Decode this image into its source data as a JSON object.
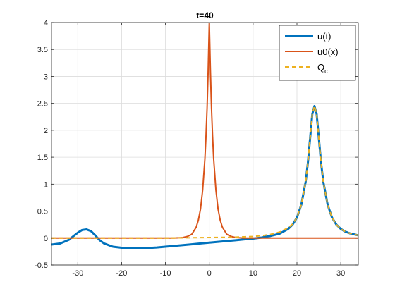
{
  "chart_data": {
    "type": "line",
    "title": "t=40",
    "xlabel": "",
    "ylabel": "",
    "xlim": [
      -36,
      34
    ],
    "ylim": [
      -0.5,
      4
    ],
    "grid": true,
    "legend_position": "top-right",
    "x_ticks": [
      -30,
      -20,
      -10,
      0,
      10,
      20,
      30
    ],
    "x_tick_labels": [
      "-30",
      "-20",
      "-10",
      "0",
      "10",
      "20",
      "30"
    ],
    "y_ticks": [
      -0.5,
      0,
      0.5,
      1,
      1.5,
      2,
      2.5,
      3,
      3.5,
      4
    ],
    "y_tick_labels": [
      "-0.5",
      "0",
      "0.5",
      "1",
      "1.5",
      "2",
      "2.5",
      "3",
      "3.5",
      "4"
    ],
    "legend": {
      "entries": [
        {
          "label": "u(t)",
          "series_index": 0
        },
        {
          "label": "u0(x)",
          "series_index": 1
        },
        {
          "label": "Q",
          "subscript": "c",
          "series_index": 2
        }
      ]
    },
    "series": [
      {
        "name": "u(t)",
        "color": "#0072BD",
        "style": "solid-with-markers",
        "x": [
          -36,
          -34,
          -32,
          -30,
          -29,
          -28,
          -27,
          -26,
          -25,
          -24,
          -22,
          -20,
          -18,
          -16,
          -14,
          -12,
          -10,
          -8,
          -6,
          -4,
          -2,
          0,
          2,
          4,
          6,
          8,
          10,
          12,
          14,
          16,
          18,
          19,
          20,
          21,
          22,
          22.5,
          23,
          23.5,
          24,
          24.5,
          25,
          25.5,
          26,
          27,
          28,
          29,
          30,
          31,
          32,
          33,
          34
        ],
        "y": [
          -0.12,
          -0.1,
          -0.03,
          0.1,
          0.15,
          0.16,
          0.13,
          0.05,
          -0.04,
          -0.1,
          -0.16,
          -0.18,
          -0.19,
          -0.19,
          -0.185,
          -0.175,
          -0.16,
          -0.145,
          -0.13,
          -0.115,
          -0.1,
          -0.085,
          -0.07,
          -0.055,
          -0.04,
          -0.025,
          -0.01,
          0.01,
          0.04,
          0.08,
          0.17,
          0.25,
          0.38,
          0.62,
          1.05,
          1.4,
          1.85,
          2.3,
          2.45,
          2.3,
          1.85,
          1.4,
          1.05,
          0.62,
          0.38,
          0.25,
          0.17,
          0.12,
          0.09,
          0.07,
          0.05
        ]
      },
      {
        "name": "u0(x)",
        "color": "#D95319",
        "style": "solid",
        "x": [
          -36,
          -20,
          -10,
          -8,
          -6,
          -5,
          -4,
          -3,
          -2.5,
          -2,
          -1.5,
          -1,
          -0.75,
          -0.5,
          -0.25,
          0,
          0.25,
          0.5,
          0.75,
          1,
          1.5,
          2,
          2.5,
          3,
          4,
          5,
          6,
          8,
          10,
          20,
          34
        ],
        "y": [
          0,
          0,
          0,
          0,
          0.01,
          0.03,
          0.07,
          0.2,
          0.33,
          0.54,
          0.9,
          1.47,
          1.89,
          2.42,
          3.12,
          4.0,
          3.12,
          2.42,
          1.89,
          1.47,
          0.9,
          0.54,
          0.33,
          0.2,
          0.07,
          0.03,
          0.01,
          0,
          0,
          0,
          0
        ]
      },
      {
        "name": "Q",
        "color": "#EDB120",
        "style": "dashed",
        "x": [
          -36,
          -20,
          -10,
          0,
          5,
          10,
          12,
          14,
          16,
          18,
          19,
          20,
          21,
          22,
          22.5,
          23,
          23.5,
          24,
          24.5,
          25,
          25.5,
          26,
          27,
          28,
          29,
          30,
          31,
          32,
          33,
          34
        ],
        "y": [
          0,
          0,
          0,
          0.01,
          0.015,
          0.03,
          0.045,
          0.07,
          0.11,
          0.19,
          0.26,
          0.38,
          0.62,
          1.05,
          1.4,
          1.85,
          2.3,
          2.45,
          2.3,
          1.85,
          1.4,
          1.05,
          0.62,
          0.38,
          0.25,
          0.17,
          0.12,
          0.09,
          0.07,
          0.05
        ]
      }
    ]
  }
}
